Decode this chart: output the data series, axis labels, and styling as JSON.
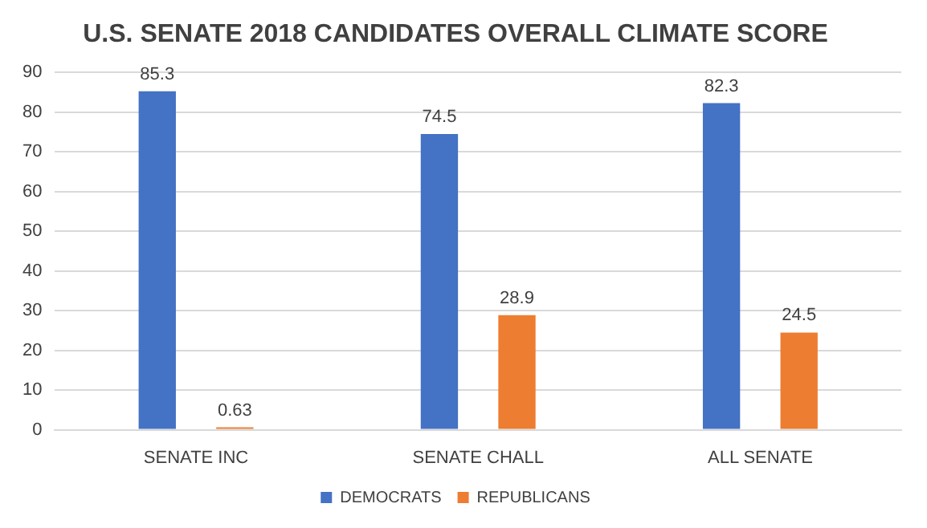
{
  "chart_data": {
    "type": "bar",
    "title": "U.S. SENATE 2018 CANDIDATES OVERALL CLIMATE SCORE",
    "categories": [
      "SENATE INC",
      "SENATE CHALL",
      "ALL SENATE"
    ],
    "series": [
      {
        "name": "DEMOCRATS",
        "color": "#4472c4",
        "values": [
          85.3,
          74.5,
          82.3
        ]
      },
      {
        "name": "REPUBLICANS",
        "color": "#ed7d31",
        "values": [
          0.63,
          28.9,
          24.5
        ]
      }
    ],
    "ylim": [
      0,
      90
    ],
    "yticks": [
      0,
      10,
      20,
      30,
      40,
      50,
      60,
      70,
      80,
      90
    ],
    "grid": "y",
    "legend": "bottom",
    "data_labels": true
  }
}
